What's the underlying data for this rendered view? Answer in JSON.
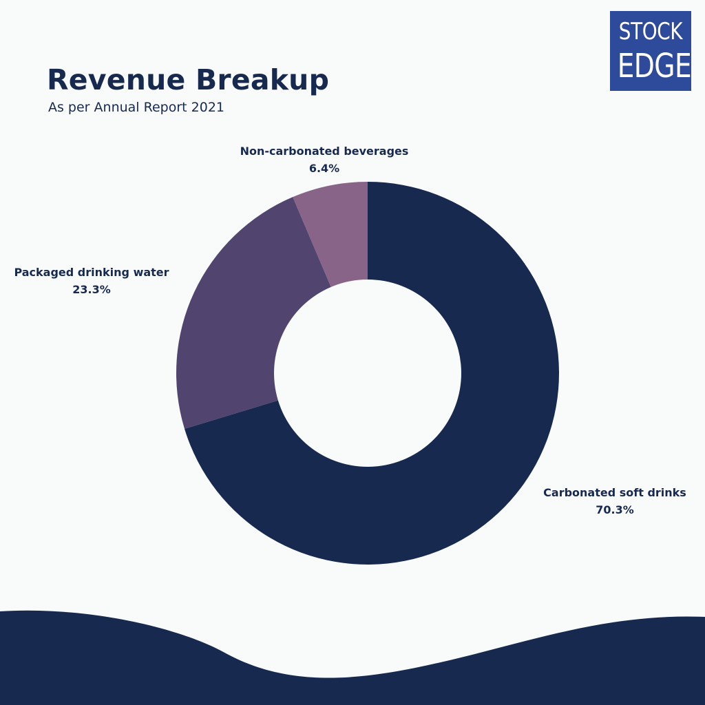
{
  "header": {
    "title": "Revenue Breakup",
    "subtitle": "As per Annual Report 2021"
  },
  "logo": {
    "line1": "STOCK",
    "line2": "EDGE",
    "color": "#2e4a9a"
  },
  "chart_data": {
    "type": "pie",
    "donut": true,
    "title": "Revenue Breakup",
    "subtitle": "As per Annual Report 2021",
    "legend": "none",
    "series": [
      {
        "name": "Carbonated soft drinks",
        "value": 70.3,
        "label": "70.3%",
        "color": "#17294f"
      },
      {
        "name": "Packaged drinking water",
        "value": 23.3,
        "label": "23.3%",
        "color": "#51446f"
      },
      {
        "name": "Non-carbonated beverages",
        "value": 6.4,
        "label": "6.4%",
        "color": "#886488"
      }
    ]
  },
  "colors": {
    "primary": "#17294f",
    "background": "#f9fafa"
  }
}
